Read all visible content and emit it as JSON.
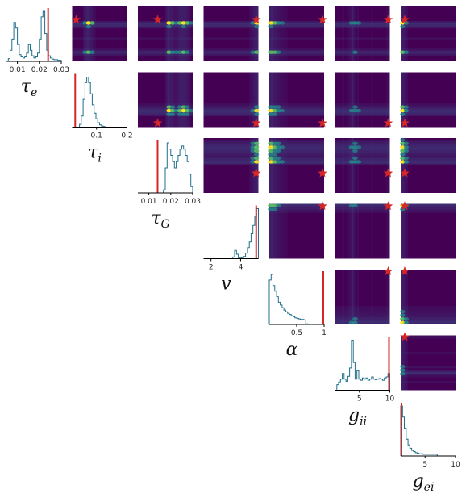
{
  "chart_data": {
    "type": "corner",
    "parameters": [
      {
        "key": "tau_e",
        "symbol": "τ",
        "subscript": "e"
      },
      {
        "key": "tau_i",
        "symbol": "τ",
        "subscript": "i"
      },
      {
        "key": "tau_G",
        "symbol": "τ",
        "subscript": "G"
      },
      {
        "key": "v",
        "symbol": "v",
        "subscript": ""
      },
      {
        "key": "alpha",
        "symbol": "α",
        "subscript": ""
      },
      {
        "key": "g_ii",
        "symbol": "g",
        "subscript": "ii"
      },
      {
        "key": "g_ei",
        "symbol": "g",
        "subscript": "ei"
      }
    ],
    "ranges": [
      [
        0.005,
        0.03
      ],
      [
        0.02,
        0.2
      ],
      [
        0.005,
        0.03
      ],
      [
        1.5,
        5.2
      ],
      [
        0.0,
        1.0
      ],
      [
        1.0,
        10.0
      ],
      [
        1.0,
        10.0
      ]
    ],
    "ticks": [
      [
        "0.01",
        "0.02",
        "0.03"
      ],
      [
        "0.1",
        "0.2"
      ],
      [
        "0.01",
        "0.02",
        "0.03"
      ],
      [
        "2",
        "4"
      ],
      [
        "0.5",
        "1"
      ],
      [
        "5",
        "10"
      ],
      [
        "5",
        "10"
      ]
    ],
    "tick_values": [
      [
        0.01,
        0.02,
        0.03
      ],
      [
        0.1,
        0.2
      ],
      [
        0.01,
        0.02,
        0.03
      ],
      [
        2,
        4
      ],
      [
        0.5,
        1
      ],
      [
        5,
        10
      ],
      [
        5,
        10
      ]
    ],
    "true_values": [
      0.024,
      0.03,
      0.014,
      5.05,
      1.0,
      10.0,
      1.05
    ],
    "histograms": [
      [
        0,
        0.5,
        2,
        4,
        7,
        6,
        3,
        1.2,
        0.8,
        0.6,
        0.8,
        1.5,
        3,
        2,
        1,
        0.6,
        0.8,
        1.5,
        4,
        8,
        9,
        5,
        2,
        1,
        0.6,
        0.4,
        0.3,
        0.3,
        0.2,
        0.2
      ],
      [
        0,
        0,
        0,
        0,
        0.5,
        2,
        5,
        8,
        9,
        8,
        6,
        4,
        2.5,
        1.5,
        0.8,
        0.4,
        0.2,
        0.1,
        0,
        0,
        0,
        0,
        0,
        0,
        0,
        0,
        0,
        0,
        0,
        0
      ],
      [
        0,
        0,
        0,
        0,
        0,
        0,
        0,
        0,
        0,
        0,
        0,
        0,
        0,
        0,
        0.5,
        4,
        8,
        7,
        6,
        5,
        4,
        5,
        6,
        7,
        7.5,
        7,
        6,
        5,
        3,
        1
      ],
      [
        0,
        0,
        0,
        0,
        0,
        0,
        0,
        0,
        0,
        0,
        0,
        0,
        0,
        0,
        0,
        0,
        0.3,
        1.5,
        0.8,
        0.1,
        0.1,
        0.2,
        0.4,
        1,
        2,
        3,
        4.5,
        6,
        7.5,
        9
      ],
      [
        8,
        9,
        7,
        6,
        5,
        4,
        3.5,
        3,
        2.6,
        2.3,
        2,
        1.8,
        1.6,
        1.4,
        1.2,
        1.1,
        1,
        0.9,
        0.9,
        0.8,
        0.1,
        0,
        0,
        0,
        0,
        0,
        0,
        0,
        0,
        0
      ],
      [
        0,
        1,
        1.5,
        2,
        3,
        2,
        1.6,
        2.5,
        4,
        9,
        5,
        2,
        3.5,
        2,
        1.8,
        2.2,
        2,
        2.2,
        1.8,
        2,
        2.4,
        2,
        1.9,
        2,
        2.1,
        2,
        1.8,
        2.2,
        2.4,
        3
      ],
      [
        9,
        7,
        5,
        3,
        2,
        1.4,
        1,
        0.8,
        0.6,
        0.5,
        0.4,
        0.4,
        0.3,
        0.3,
        0.3,
        0.3,
        0.3,
        0.3,
        0.3,
        0.3,
        0,
        0,
        0,
        0,
        0,
        0,
        0,
        0,
        0,
        0
      ]
    ],
    "hist_color": "#1f6f8b",
    "truth_color": "#d62728",
    "density_colors": [
      "#440154",
      "#3b528b",
      "#21918c",
      "#5ec962",
      "#fde725"
    ],
    "grid": false,
    "legend": "none"
  }
}
